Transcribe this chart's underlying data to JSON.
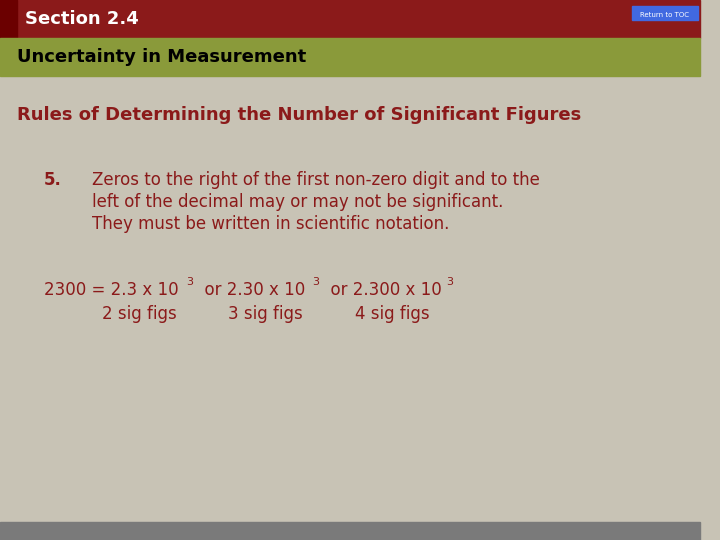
{
  "bg_color": "#c8c3b5",
  "header_red_color": "#8b1a1a",
  "header_green_color": "#7a8c3a",
  "header_red_bg": "#8b1a1a",
  "section_label": "Section 2.4",
  "section_label_color": "#ffffff",
  "section_red_bar_color": "#8b1a1a",
  "subtitle": "Uncertainty in Measurement",
  "subtitle_color": "#000000",
  "subtitle_bg": "#8a9a3a",
  "rule_title": "Rules of Determining the Number of Significant Figures",
  "rule_title_color": "#8b1a1a",
  "body_text_color": "#8b1a1a",
  "item_number": "5.",
  "item_text_line1": "Zeros to the right of the first non-zero digit and to the",
  "item_text_line2": "left of the decimal may or may not be significant.",
  "item_text_line3": "They must be written in scientific notation.",
  "formula_line1": "2300 = 2.3 x 10",
  "formula_exp1": "3",
  "formula_or1": "  or 2.30 x 10",
  "formula_exp2": "3",
  "formula_or2": "  or 2.300 x 10",
  "formula_exp3": "3",
  "sig_fig_line": "       2 sig figs        3 sig figs          4 sig figs",
  "footer_text": "Return to TOC",
  "footer_text_color": "#000080",
  "footer_bg": "#4169e1",
  "gray_footer_color": "#808080"
}
